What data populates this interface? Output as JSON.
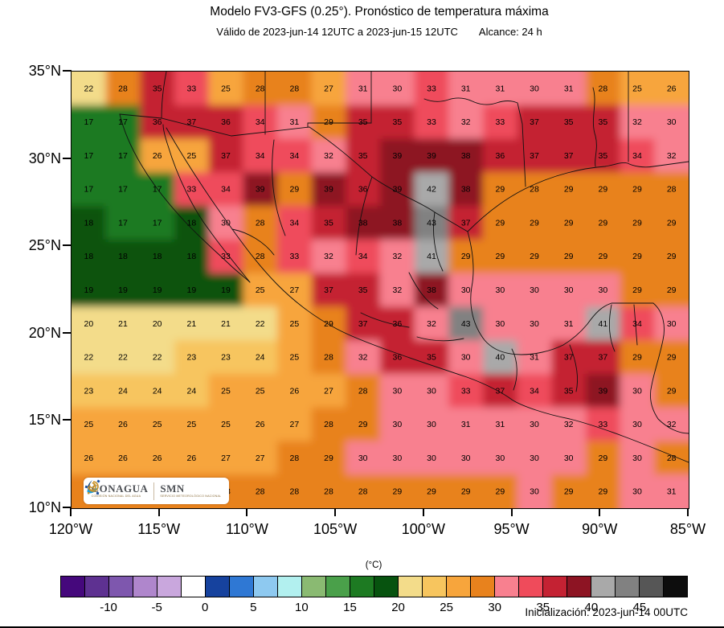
{
  "chart_data": {
    "type": "heatmap",
    "title": "Modelo FV3-GFS (0.25°). Pronóstico de temperatura máxima",
    "subtitle_valid": "Válido de 2023-jun-14 12UTC a 2023-jun-15 12UTC",
    "subtitle_alcance": "Alcance: 24 h",
    "x_ticks": [
      "120°W",
      "115°W",
      "110°W",
      "105°W",
      "100°W",
      "95°W",
      "90°W",
      "85°W"
    ],
    "y_ticks": [
      "35°N",
      "30°N",
      "25°N",
      "20°N",
      "15°N",
      "10°N"
    ],
    "values": [
      [
        22,
        28,
        35,
        33,
        25,
        28,
        28,
        27,
        31,
        30,
        33,
        31,
        31,
        30,
        31,
        28,
        25,
        26
      ],
      [
        17,
        17,
        36,
        37,
        36,
        34,
        31,
        29,
        35,
        35,
        33,
        32,
        33,
        37,
        35,
        35,
        32,
        30
      ],
      [
        17,
        17,
        26,
        25,
        37,
        34,
        34,
        32,
        35,
        39,
        39,
        38,
        36,
        37,
        37,
        35,
        34,
        32
      ],
      [
        17,
        17,
        17,
        33,
        34,
        39,
        29,
        39,
        36,
        39,
        42,
        38,
        29,
        28,
        29,
        29,
        29,
        28
      ],
      [
        18,
        17,
        17,
        18,
        30,
        28,
        34,
        35,
        38,
        38,
        43,
        37,
        29,
        29,
        29,
        29,
        29,
        29
      ],
      [
        18,
        18,
        18,
        18,
        33,
        28,
        33,
        32,
        34,
        32,
        41,
        29,
        29,
        29,
        29,
        29,
        29,
        29
      ],
      [
        19,
        19,
        19,
        19,
        19,
        25,
        27,
        37,
        35,
        32,
        38,
        30,
        30,
        30,
        30,
        30,
        29,
        29
      ],
      [
        20,
        21,
        20,
        21,
        21,
        22,
        25,
        29,
        37,
        36,
        32,
        43,
        30,
        30,
        31,
        41,
        34,
        30
      ],
      [
        22,
        22,
        22,
        23,
        23,
        24,
        25,
        28,
        32,
        36,
        35,
        30,
        40,
        31,
        37,
        37,
        29,
        29
      ],
      [
        23,
        24,
        24,
        24,
        25,
        25,
        26,
        27,
        28,
        30,
        30,
        33,
        37,
        34,
        35,
        39,
        30,
        29
      ],
      [
        25,
        26,
        25,
        25,
        25,
        26,
        27,
        28,
        29,
        30,
        30,
        31,
        31,
        30,
        32,
        33,
        30,
        32
      ],
      [
        26,
        26,
        26,
        26,
        27,
        27,
        28,
        29,
        30,
        30,
        30,
        30,
        30,
        30,
        30,
        29,
        30,
        28
      ],
      [
        null,
        null,
        null,
        null,
        28,
        28,
        28,
        28,
        28,
        29,
        29,
        29,
        29,
        30,
        29,
        29,
        30,
        31
      ]
    ],
    "colorbar": {
      "label": "(°C)",
      "ticks": [
        -10,
        -5,
        0,
        5,
        10,
        15,
        20,
        25,
        30,
        35,
        40,
        45
      ],
      "min": -15,
      "max": 50,
      "step": 2.5,
      "colors": [
        "#45087c",
        "#5e3191",
        "#7e57ae",
        "#af86cc",
        "#c9a7dd",
        "#ffffff",
        "#16429e",
        "#2f78d4",
        "#8ec9f0",
        "#b2f0ef",
        "#8aba72",
        "#4aa04a",
        "#1d7a22",
        "#07530f",
        "#f3dc8a",
        "#f7c55e",
        "#f7a53c",
        "#e8821d",
        "#f8808f",
        "#ef4b5b",
        "#c42233",
        "#8d1423",
        "#a9a9a9",
        "#818181",
        "#565656",
        "#0d0d0d"
      ]
    },
    "annotations": {
      "initialization": "Inicialización: 2023-jun-14 00UTC"
    }
  },
  "logos": {
    "conagua": {
      "name": "CONAGUA",
      "tagline": "COMISIÓN NACIONAL DEL AGUA"
    },
    "smn": {
      "name": "SMN",
      "tagline": "SERVICIO METEOROLÓGICO NACIONAL"
    }
  }
}
